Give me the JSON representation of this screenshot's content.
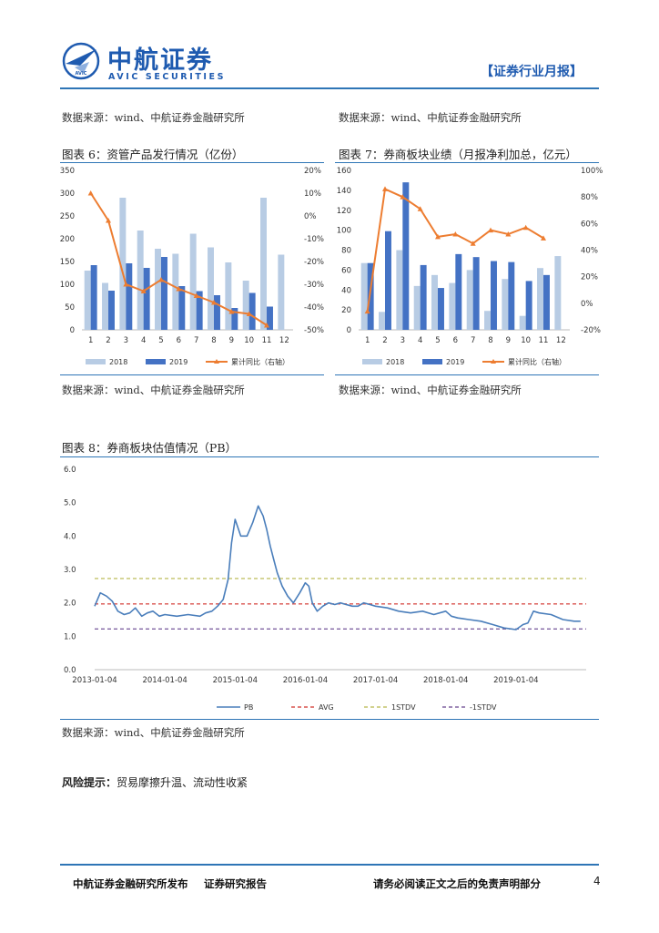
{
  "header": {
    "logo_cn": "中航证券",
    "logo_en": "AVIC SECURITIES",
    "logo_badge": "AVIC",
    "report_tag": "【证券行业月报】"
  },
  "sources": {
    "top_left": "数据来源：wind、中航证券金融研究所",
    "top_right": "数据来源：wind、中航证券金融研究所",
    "mid_left": "数据来源：wind、中航证券金融研究所",
    "mid_right": "数据来源：wind、中航证券金融研究所",
    "bottom": "数据来源：wind、中航证券金融研究所"
  },
  "charts": [
    {
      "type": "bar",
      "title": "图表 6：资管产品发行情况（亿份）",
      "categories": [
        "1",
        "2",
        "3",
        "4",
        "5",
        "6",
        "7",
        "8",
        "9",
        "10",
        "11",
        "12"
      ],
      "series": [
        {
          "name": "2018",
          "values": [
            130,
            103,
            290,
            218,
            178,
            167,
            211,
            181,
            148,
            108,
            290,
            165
          ],
          "color": "#b8cce4"
        },
        {
          "name": "2019",
          "values": [
            142,
            86,
            146,
            136,
            160,
            96,
            85,
            76,
            48,
            81,
            51,
            null
          ],
          "color": "#4472c4"
        },
        {
          "name": "累计同比（右轴）",
          "axis": "right",
          "type": "line",
          "values": [
            10,
            -2,
            -30,
            -33,
            -28,
            -32,
            -35,
            -38,
            -42,
            -43,
            -48,
            null
          ],
          "color": "#ed7d31"
        }
      ],
      "ylim": [
        0,
        350
      ],
      "yticks": [
        "0",
        "50",
        "100",
        "150",
        "200",
        "250",
        "300",
        "350"
      ],
      "y2lim": [
        -50,
        20
      ],
      "y2ticks": [
        "-50%",
        "-40%",
        "-30%",
        "-20%",
        "-10%",
        "0%",
        "10%",
        "20%"
      ],
      "legend": "bottom"
    },
    {
      "type": "bar",
      "title": "图表 7：券商板块业绩（月报净利加总，亿元）",
      "categories": [
        "1",
        "2",
        "3",
        "4",
        "5",
        "6",
        "7",
        "8",
        "9",
        "10",
        "11",
        "12"
      ],
      "series": [
        {
          "name": "2018",
          "values": [
            67,
            18,
            80,
            44,
            55,
            47,
            60,
            19,
            51,
            14,
            62,
            74
          ],
          "color": "#b8cce4"
        },
        {
          "name": "2019",
          "values": [
            67,
            99,
            148,
            65,
            42,
            76,
            73,
            69,
            68,
            49,
            55,
            null
          ],
          "color": "#4472c4"
        },
        {
          "name": "累计同比（右轴）",
          "axis": "right",
          "type": "line",
          "values": [
            -6,
            86,
            80,
            71,
            50,
            52,
            45,
            55,
            52,
            57,
            49,
            null
          ],
          "color": "#ed7d31"
        }
      ],
      "ylim": [
        0,
        160
      ],
      "yticks": [
        "0",
        "20",
        "40",
        "60",
        "80",
        "100",
        "120",
        "140",
        "160"
      ],
      "y2lim": [
        -20,
        100
      ],
      "y2ticks": [
        "-20%",
        "0%",
        "20%",
        "40%",
        "60%",
        "80%",
        "100%"
      ],
      "legend": "bottom"
    },
    {
      "type": "line",
      "title": "图表 8：券商板块估值情况（PB）",
      "xticks": [
        "2013-01-04",
        "2014-01-04",
        "2015-01-04",
        "2016-01-04",
        "2017-01-04",
        "2018-01-04",
        "2019-01-04"
      ],
      "ylim": [
        0,
        6
      ],
      "yticks": [
        "0.0",
        "1.0",
        "2.0",
        "3.0",
        "4.0",
        "5.0",
        "6.0"
      ],
      "series": [
        {
          "name": "PB",
          "color": "#4a7ebb",
          "style": "solid",
          "x": [
            2013.0,
            2013.08,
            2013.17,
            2013.25,
            2013.33,
            2013.42,
            2013.5,
            2013.58,
            2013.67,
            2013.75,
            2013.83,
            2013.92,
            2014.0,
            2014.17,
            2014.33,
            2014.5,
            2014.58,
            2014.67,
            2014.75,
            2014.83,
            2014.9,
            2014.95,
            2015.0,
            2015.08,
            2015.17,
            2015.25,
            2015.33,
            2015.4,
            2015.45,
            2015.5,
            2015.55,
            2015.6,
            2015.67,
            2015.75,
            2015.83,
            2015.92,
            2016.0,
            2016.05,
            2016.1,
            2016.17,
            2016.25,
            2016.33,
            2016.42,
            2016.5,
            2016.58,
            2016.67,
            2016.75,
            2016.83,
            2016.92,
            2017.0,
            2017.17,
            2017.33,
            2017.5,
            2017.67,
            2017.83,
            2018.0,
            2018.08,
            2018.17,
            2018.33,
            2018.5,
            2018.67,
            2018.83,
            2019.0,
            2019.1,
            2019.17,
            2019.25,
            2019.33,
            2019.5,
            2019.67,
            2019.83,
            2019.92
          ],
          "y": [
            1.9,
            2.3,
            2.2,
            2.05,
            1.75,
            1.65,
            1.7,
            1.85,
            1.6,
            1.7,
            1.75,
            1.6,
            1.65,
            1.6,
            1.65,
            1.6,
            1.7,
            1.75,
            1.9,
            2.1,
            2.7,
            3.8,
            4.5,
            4.0,
            4.0,
            4.4,
            4.9,
            4.6,
            4.2,
            3.7,
            3.3,
            2.9,
            2.5,
            2.2,
            2.0,
            2.3,
            2.6,
            2.5,
            2.0,
            1.75,
            1.9,
            2.0,
            1.95,
            2.0,
            1.95,
            1.9,
            1.9,
            2.0,
            1.95,
            1.9,
            1.85,
            1.75,
            1.7,
            1.75,
            1.65,
            1.75,
            1.6,
            1.55,
            1.5,
            1.45,
            1.35,
            1.25,
            1.2,
            1.35,
            1.4,
            1.75,
            1.7,
            1.65,
            1.5,
            1.45,
            1.45
          ]
        },
        {
          "name": "AVG",
          "color": "#d9534f",
          "style": "dashed",
          "value": 1.97
        },
        {
          "name": "1STDV",
          "color": "#c4c46a",
          "style": "dashed",
          "value": 2.73
        },
        {
          "name": "-1STDV",
          "color": "#8064a2",
          "style": "dashed",
          "value": 1.22
        }
      ],
      "xlim": [
        2013.0,
        2020.0
      ],
      "legend": "bottom"
    }
  ],
  "risk": {
    "label": "风险提示：",
    "text": "贸易摩擦升温、流动性收紧"
  },
  "footer": {
    "left1": "中航证券金融研究所发布",
    "left2": "证券研究报告",
    "right": "请务必阅读正文之后的免责声明部分",
    "page": "4"
  }
}
